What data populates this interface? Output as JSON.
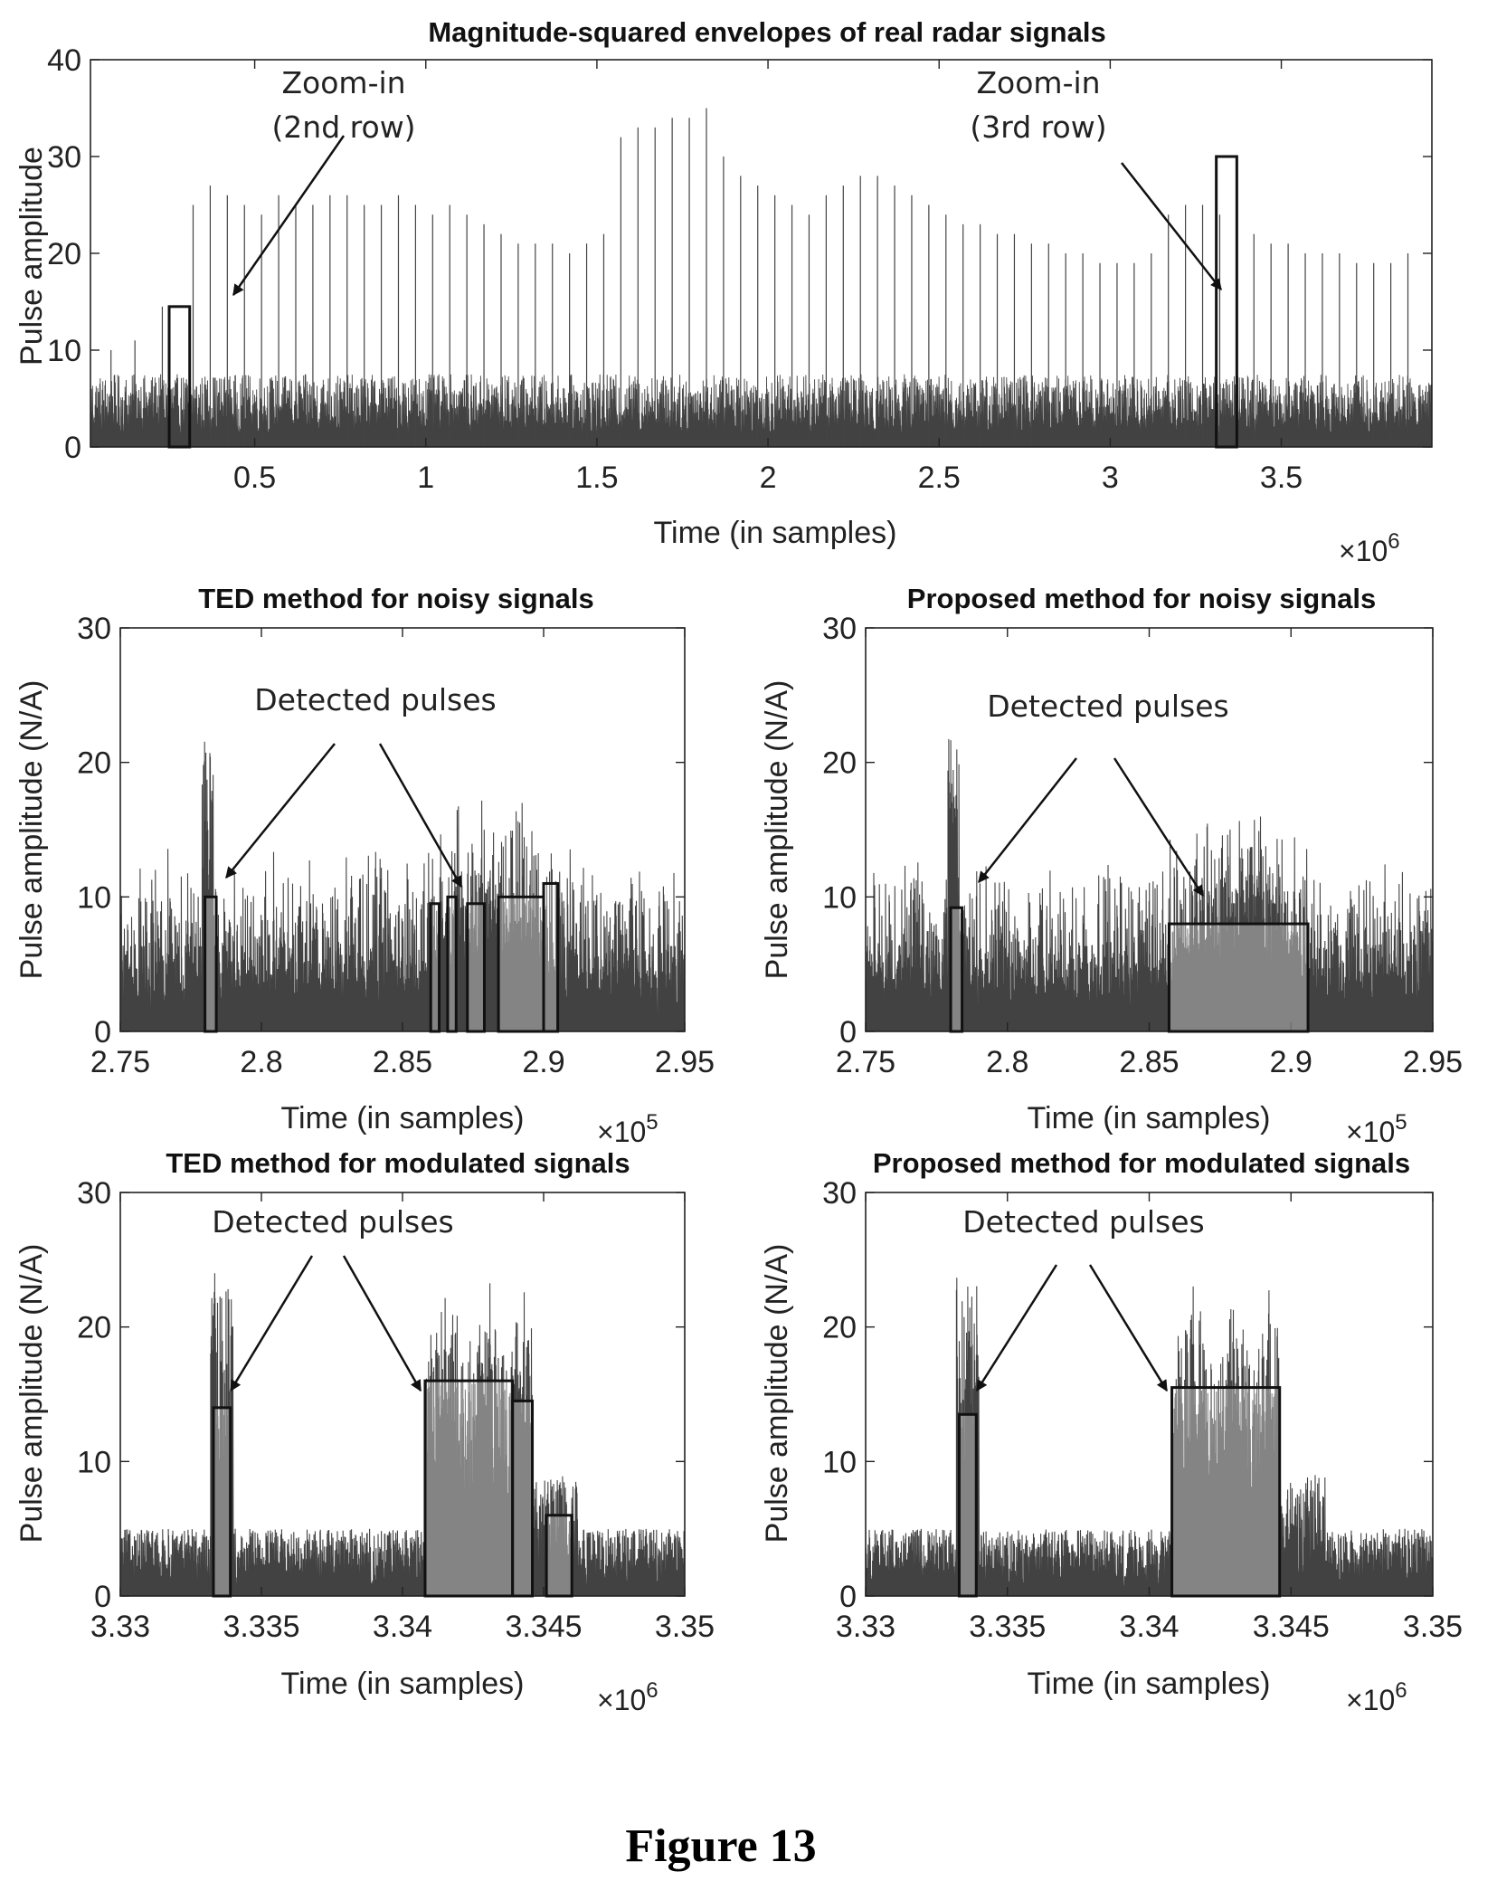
{
  "figure_caption": "Figure 13",
  "chart_data": [
    {
      "id": "top",
      "type": "line",
      "title": "Magnitude-squared envelopes of real radar signals",
      "xlabel": "Time (in samples)",
      "ylabel": "Pulse amplitude",
      "x_multiplier": "×10",
      "x_multiplier_exp": "6",
      "xlim": [
        0.02,
        3.94
      ],
      "ylim": [
        0,
        40
      ],
      "xticks": [
        0.5,
        1,
        1.5,
        2,
        2.5,
        3,
        3.5
      ],
      "xtick_labels": [
        "0.5",
        "1",
        "1.5",
        "2",
        "2.5",
        "3",
        "3.5"
      ],
      "yticks": [
        0,
        10,
        20,
        30,
        40
      ],
      "ytick_labels": [
        "0",
        "10",
        "20",
        "30",
        "40"
      ],
      "noise_floor": 7.5,
      "pulse_train": {
        "first_x": 0.32,
        "spacing": 0.05,
        "amplitudes": [
          25,
          27,
          26,
          25,
          24,
          26,
          25,
          25,
          26,
          26,
          25,
          25,
          26,
          25,
          24,
          25,
          24,
          23,
          22,
          21,
          21,
          21,
          20,
          21,
          22,
          32,
          33,
          33,
          34,
          34,
          35,
          30,
          28,
          27,
          26,
          25,
          24,
          26,
          27,
          28,
          28,
          27,
          26,
          25,
          24,
          23,
          23,
          22,
          22,
          21,
          21,
          20,
          20,
          19,
          19,
          19,
          20,
          24,
          25,
          25,
          24,
          23,
          22,
          21,
          21,
          20,
          20,
          20,
          19,
          19,
          19,
          20
        ]
      },
      "boxes": [
        {
          "x0": 0.25,
          "x1": 0.31,
          "y": 14.5
        },
        {
          "x0": 3.31,
          "x1": 3.37,
          "y": 30
        }
      ],
      "annotations": [
        {
          "lines": [
            "Zoom-in",
            "(2nd row)"
          ],
          "x": 0.45,
          "y": 37
        },
        {
          "lines": [
            "Zoom-in",
            "(3rd row)"
          ],
          "x": 3.38,
          "y": 37
        }
      ]
    },
    {
      "id": "ted-noisy",
      "type": "line",
      "title": "TED method for noisy signals",
      "xlabel": "Time (in samples)",
      "ylabel": "Pulse amplitude (N/A)",
      "x_multiplier": "×10",
      "x_multiplier_exp": "5",
      "xlim": [
        2.75,
        2.95
      ],
      "ylim": [
        0,
        30
      ],
      "xticks": [
        2.75,
        2.8,
        2.85,
        2.9,
        2.95
      ],
      "xtick_labels": [
        "2.75",
        "2.8",
        "2.85",
        "2.9",
        "2.95"
      ],
      "yticks": [
        0,
        10,
        20,
        30
      ],
      "ytick_labels": [
        "0",
        "10",
        "20",
        "30"
      ],
      "annotation": "Detected pulses",
      "boxes": [
        {
          "x0": 2.78,
          "x1": 2.784,
          "y": 10
        },
        {
          "x0": 2.86,
          "x1": 2.863,
          "y": 9.5
        },
        {
          "x0": 2.866,
          "x1": 2.869,
          "y": 10
        },
        {
          "x0": 2.873,
          "x1": 2.879,
          "y": 9.5
        },
        {
          "x0": 2.884,
          "x1": 2.9,
          "y": 10
        },
        {
          "x0": 2.9,
          "x1": 2.905,
          "y": 11
        }
      ]
    },
    {
      "id": "proposed-noisy",
      "type": "line",
      "title": "Proposed method for noisy signals",
      "xlabel": "Time (in samples)",
      "ylabel": "Pulse amplitude (N/A)",
      "x_multiplier": "×10",
      "x_multiplier_exp": "5",
      "xlim": [
        2.75,
        2.95
      ],
      "ylim": [
        0,
        30
      ],
      "xticks": [
        2.75,
        2.8,
        2.85,
        2.9,
        2.95
      ],
      "xtick_labels": [
        "2.75",
        "2.8",
        "2.85",
        "2.9",
        "2.95"
      ],
      "yticks": [
        0,
        10,
        20,
        30
      ],
      "ytick_labels": [
        "0",
        "10",
        "20",
        "30"
      ],
      "annotation": "Detected pulses",
      "boxes": [
        {
          "x0": 2.78,
          "x1": 2.784,
          "y": 9.2
        },
        {
          "x0": 2.857,
          "x1": 2.906,
          "y": 8
        }
      ]
    },
    {
      "id": "ted-modulated",
      "type": "line",
      "title": "TED method for modulated signals",
      "xlabel": "Time (in samples)",
      "ylabel": "Pulse amplitude (N/A)",
      "x_multiplier": "×10",
      "x_multiplier_exp": "6",
      "xlim": [
        3.33,
        3.35
      ],
      "ylim": [
        0,
        30
      ],
      "xticks": [
        3.33,
        3.335,
        3.34,
        3.345,
        3.35
      ],
      "xtick_labels": [
        "3.33",
        "3.335",
        "3.34",
        "3.345",
        "3.35"
      ],
      "yticks": [
        0,
        10,
        20,
        30
      ],
      "ytick_labels": [
        "0",
        "10",
        "20",
        "30"
      ],
      "annotation": "Detected pulses",
      "boxes": [
        {
          "x0": 3.3333,
          "x1": 3.3339,
          "y": 14
        },
        {
          "x0": 3.3408,
          "x1": 3.3439,
          "y": 16
        },
        {
          "x0": 3.3439,
          "x1": 3.3446,
          "y": 14.5
        },
        {
          "x0": 3.3451,
          "x1": 3.346,
          "y": 6
        }
      ]
    },
    {
      "id": "proposed-modulated",
      "type": "line",
      "title": "Proposed method for modulated signals",
      "xlabel": "Time (in samples)",
      "ylabel": "Pulse amplitude (N/A)",
      "x_multiplier": "×10",
      "x_multiplier_exp": "6",
      "xlim": [
        3.33,
        3.35
      ],
      "ylim": [
        0,
        30
      ],
      "xticks": [
        3.33,
        3.335,
        3.34,
        3.345,
        3.35
      ],
      "xtick_labels": [
        "3.33",
        "3.335",
        "3.34",
        "3.345",
        "3.35"
      ],
      "yticks": [
        0,
        10,
        20,
        30
      ],
      "ytick_labels": [
        "0",
        "10",
        "20",
        "30"
      ],
      "annotation": "Detected pulses",
      "boxes": [
        {
          "x0": 3.3333,
          "x1": 3.3339,
          "y": 13.5
        },
        {
          "x0": 3.3408,
          "x1": 3.3446,
          "y": 15.5
        }
      ]
    }
  ]
}
